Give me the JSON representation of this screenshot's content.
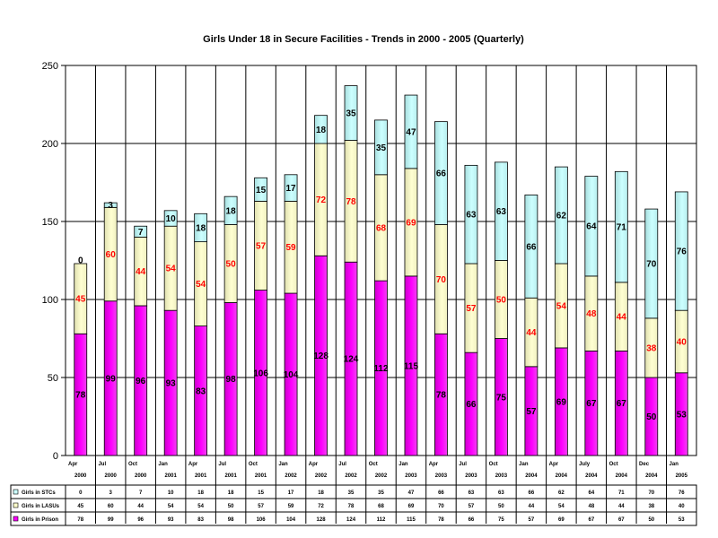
{
  "chart_data": {
    "type": "bar",
    "stacked": true,
    "title": "Girls Under 18 in Secure Facilities - Trends in 2000 - 2005 (Quarterly)",
    "categories": [
      {
        "month": "Apr",
        "year": "2000"
      },
      {
        "month": "Jul",
        "year": "2000"
      },
      {
        "month": "Oct",
        "year": "2000"
      },
      {
        "month": "Jan",
        "year": "2001"
      },
      {
        "month": "Apr",
        "year": "2001"
      },
      {
        "month": "Jul",
        "year": "2001"
      },
      {
        "month": "Oct",
        "year": "2001"
      },
      {
        "month": "Jan",
        "year": "2002"
      },
      {
        "month": "Apr",
        "year": "2002"
      },
      {
        "month": "Jul",
        "year": "2002"
      },
      {
        "month": "Oct",
        "year": "2002"
      },
      {
        "month": "Jan",
        "year": "2003"
      },
      {
        "month": "Apr",
        "year": "2003"
      },
      {
        "month": "Jul",
        "year": "2003"
      },
      {
        "month": "Oct",
        "year": "2003"
      },
      {
        "month": "Jan",
        "year": "2004"
      },
      {
        "month": "Apr",
        "year": "2004"
      },
      {
        "month": "July",
        "year": "2004"
      },
      {
        "month": "Oct",
        "year": "2004"
      },
      {
        "month": "Dec",
        "year": "2004"
      },
      {
        "month": "Jan",
        "year": "2005"
      }
    ],
    "series": [
      {
        "name": "Girls in Prison",
        "color": "#ff00ff",
        "label_color": "#000000",
        "values": [
          78,
          99,
          96,
          93,
          83,
          98,
          106,
          104,
          128,
          124,
          112,
          115,
          78,
          66,
          75,
          57,
          69,
          67,
          67,
          50,
          53
        ]
      },
      {
        "name": "Girls in LASUs",
        "color": "#ffffcc",
        "label_color": "#ff0000",
        "values": [
          45,
          60,
          44,
          54,
          54,
          50,
          57,
          59,
          72,
          78,
          68,
          69,
          70,
          57,
          50,
          44,
          54,
          48,
          44,
          38,
          40
        ]
      },
      {
        "name": "Girls in STCs",
        "color": "#ccffff",
        "label_color": "#000000",
        "values": [
          0,
          3,
          7,
          10,
          18,
          18,
          15,
          17,
          18,
          35,
          35,
          47,
          66,
          63,
          63,
          66,
          62,
          64,
          71,
          70,
          76
        ]
      }
    ],
    "ylim": [
      0,
      250
    ],
    "yticks": [
      0,
      50,
      100,
      150,
      200,
      250
    ],
    "grid": true,
    "legend": "table-below"
  }
}
